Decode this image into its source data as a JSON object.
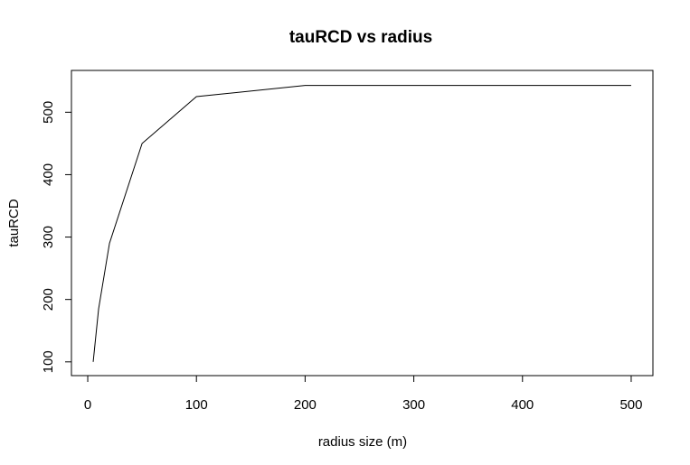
{
  "chart_data": {
    "type": "line",
    "title": "tauRCD vs radius",
    "xlabel": "radius size (m)",
    "ylabel": "tauRCD",
    "x": [
      5,
      10,
      20,
      50,
      100,
      200,
      500
    ],
    "series": [
      {
        "values": [
          100,
          185,
          290,
          450,
          525,
          543,
          543
        ]
      }
    ],
    "xlim": [
      -15,
      520
    ],
    "ylim": [
      78,
      567
    ],
    "xticks": [
      0,
      100,
      200,
      300,
      400,
      500
    ],
    "yticks": [
      100,
      200,
      300,
      400,
      500
    ],
    "line_color": "#000000",
    "grid": false,
    "legend": "none"
  }
}
